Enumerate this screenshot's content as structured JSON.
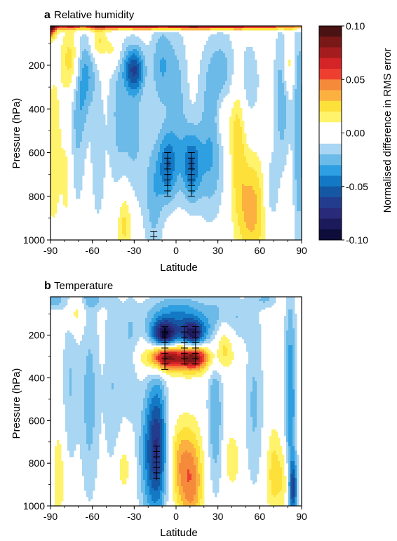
{
  "chart_data": [
    {
      "type": "heatmap",
      "panel_letter": "a",
      "title": "Relative humidity",
      "xlabel": "Latitude",
      "ylabel": "Pressure (hPa)",
      "xlim": [
        -90,
        90
      ],
      "ylim": [
        1000,
        20
      ],
      "y_reversed": true,
      "x_ticks": [
        -90,
        -60,
        -30,
        0,
        30,
        60,
        90
      ],
      "y_ticks": [
        200,
        400,
        600,
        800,
        1000
      ],
      "significance_hatching": true,
      "features": [
        {
          "lat": -91,
          "p": 20,
          "v": 0.1,
          "sx": 3,
          "sy": 35
        },
        {
          "lat": 0,
          "p": 20,
          "v": 0.08,
          "sx": 95,
          "sy": 12
        },
        {
          "lat": -88,
          "p": 600,
          "v": 0.02,
          "sx": 4,
          "sy": 250
        },
        {
          "lat": -75,
          "p": 180,
          "v": 0.03,
          "sx": 5,
          "sy": 110
        },
        {
          "lat": -68,
          "p": 270,
          "v": -0.025,
          "sx": 4,
          "sy": 170
        },
        {
          "lat": -62,
          "p": 230,
          "v": -0.02,
          "sx": 4,
          "sy": 120
        },
        {
          "lat": -72,
          "p": 560,
          "v": -0.018,
          "sx": 5,
          "sy": 260
        },
        {
          "lat": -56,
          "p": 620,
          "v": -0.016,
          "sx": 4,
          "sy": 260
        },
        {
          "lat": -42,
          "p": 420,
          "v": -0.02,
          "sx": 5,
          "sy": 300
        },
        {
          "lat": -30,
          "p": 220,
          "v": -0.05,
          "sx": 5,
          "sy": 70
        },
        {
          "lat": -30,
          "p": 500,
          "v": -0.022,
          "sx": 6,
          "sy": 260
        },
        {
          "lat": -10,
          "p": 200,
          "v": -0.03,
          "sx": 6,
          "sy": 150
        },
        {
          "lat": -16,
          "p": 800,
          "v": -0.025,
          "sx": 5,
          "sy": 200
        },
        {
          "lat": -6,
          "p": 660,
          "v": -0.045,
          "sx": 5,
          "sy": 120
        },
        {
          "lat": 11,
          "p": 660,
          "v": -0.045,
          "sx": 5,
          "sy": 120
        },
        {
          "lat": 2,
          "p": 380,
          "v": -0.02,
          "sx": 5,
          "sy": 260
        },
        {
          "lat": 25,
          "p": 620,
          "v": -0.03,
          "sx": 7,
          "sy": 200
        },
        {
          "lat": 32,
          "p": 240,
          "v": -0.025,
          "sx": 10,
          "sy": 150
        },
        {
          "lat": 52,
          "p": 280,
          "v": -0.015,
          "sx": 7,
          "sy": 160
        },
        {
          "lat": 76,
          "p": 330,
          "v": -0.03,
          "sx": 4,
          "sy": 230
        },
        {
          "lat": 88,
          "p": 500,
          "v": -0.03,
          "sx": 3,
          "sy": 420
        },
        {
          "lat": 54,
          "p": 860,
          "v": 0.035,
          "sx": 8,
          "sy": 180
        },
        {
          "lat": 44,
          "p": 480,
          "v": 0.03,
          "sx": 4,
          "sy": 220
        },
        {
          "lat": -37,
          "p": 920,
          "v": 0.028,
          "sx": 4,
          "sy": 120
        },
        {
          "lat": -56,
          "p": 90,
          "v": 0.025,
          "sx": 4,
          "sy": 60
        },
        {
          "lat": -45,
          "p": 130,
          "v": 0.02,
          "sx": 4,
          "sy": 60
        },
        {
          "lat": 80,
          "p": 200,
          "v": 0.025,
          "sx": 3,
          "sy": 90
        },
        {
          "lat": 34,
          "p": 440,
          "v": 0.02,
          "sx": 4,
          "sy": 90
        },
        {
          "lat": -78,
          "p": 700,
          "v": 0.018,
          "sx": 3,
          "sy": 200
        },
        {
          "lat": 68,
          "p": 780,
          "v": -0.02,
          "sx": 4,
          "sy": 140
        }
      ],
      "hatched_columns": [
        {
          "lat": -6,
          "p_from": 600,
          "p_to": 800
        },
        {
          "lat": 11,
          "p_from": 600,
          "p_to": 800
        },
        {
          "lat": -16,
          "p_from": 960,
          "p_to": 1000
        }
      ]
    },
    {
      "type": "heatmap",
      "panel_letter": "b",
      "title": "Temperature",
      "xlabel": "Latitude",
      "ylabel": "Pressure (hPa)",
      "xlim": [
        -90,
        90
      ],
      "ylim": [
        1000,
        20
      ],
      "y_reversed": true,
      "x_ticks": [
        -90,
        -60,
        -30,
        0,
        30,
        60,
        90
      ],
      "y_ticks": [
        200,
        400,
        600,
        800,
        1000
      ],
      "significance_hatching": true,
      "features": [
        {
          "lat": 2,
          "p": 120,
          "v": -0.04,
          "sx": 18,
          "sy": 80
        },
        {
          "lat": -8,
          "p": 200,
          "v": -0.075,
          "sx": 6,
          "sy": 45
        },
        {
          "lat": 12,
          "p": 200,
          "v": -0.07,
          "sx": 6,
          "sy": 45
        },
        {
          "lat": -8,
          "p": 300,
          "v": 0.065,
          "sx": 7,
          "sy": 40
        },
        {
          "lat": 12,
          "p": 300,
          "v": 0.065,
          "sx": 7,
          "sy": 40
        },
        {
          "lat": 2,
          "p": 310,
          "v": 0.035,
          "sx": 20,
          "sy": 50
        },
        {
          "lat": -13,
          "p": 720,
          "v": -0.055,
          "sx": 5,
          "sy": 230
        },
        {
          "lat": -20,
          "p": 760,
          "v": -0.03,
          "sx": 6,
          "sy": 240
        },
        {
          "lat": 11,
          "p": 880,
          "v": 0.045,
          "sx": 6,
          "sy": 170
        },
        {
          "lat": 2,
          "p": 800,
          "v": 0.025,
          "sx": 5,
          "sy": 140
        },
        {
          "lat": -62,
          "p": 500,
          "v": -0.025,
          "sx": 5,
          "sy": 350
        },
        {
          "lat": -45,
          "p": 420,
          "v": -0.02,
          "sx": 5,
          "sy": 350
        },
        {
          "lat": -33,
          "p": 320,
          "v": -0.02,
          "sx": 4,
          "sy": 200
        },
        {
          "lat": -76,
          "p": 420,
          "v": -0.02,
          "sx": 4,
          "sy": 300
        },
        {
          "lat": 28,
          "p": 580,
          "v": -0.03,
          "sx": 4,
          "sy": 260
        },
        {
          "lat": 40,
          "p": 120,
          "v": -0.02,
          "sx": 10,
          "sy": 80
        },
        {
          "lat": 56,
          "p": 520,
          "v": -0.022,
          "sx": 5,
          "sy": 300
        },
        {
          "lat": 82,
          "p": 520,
          "v": -0.04,
          "sx": 3,
          "sy": 380
        },
        {
          "lat": 84,
          "p": 920,
          "v": -0.05,
          "sx": 2,
          "sy": 90
        },
        {
          "lat": -88,
          "p": 30,
          "v": -0.03,
          "sx": 6,
          "sy": 35
        },
        {
          "lat": -60,
          "p": 30,
          "v": -0.02,
          "sx": 6,
          "sy": 30
        },
        {
          "lat": 65,
          "p": 30,
          "v": -0.02,
          "sx": 6,
          "sy": 30
        },
        {
          "lat": -72,
          "p": 100,
          "v": 0.02,
          "sx": 4,
          "sy": 60
        },
        {
          "lat": -38,
          "p": 820,
          "v": 0.02,
          "sx": 4,
          "sy": 90
        },
        {
          "lat": 34,
          "p": 220,
          "v": 0.028,
          "sx": 5,
          "sy": 80
        },
        {
          "lat": 40,
          "p": 780,
          "v": 0.02,
          "sx": 4,
          "sy": 90
        },
        {
          "lat": 70,
          "p": 850,
          "v": 0.025,
          "sx": 4,
          "sy": 160
        },
        {
          "lat": 78,
          "p": 880,
          "v": 0.02,
          "sx": 3,
          "sy": 120
        },
        {
          "lat": -84,
          "p": 860,
          "v": 0.02,
          "sx": 3,
          "sy": 160
        }
      ],
      "hatched_columns": [
        {
          "lat": -8,
          "p_from": 160,
          "p_to": 360
        },
        {
          "lat": 6,
          "p_from": 160,
          "p_to": 340
        },
        {
          "lat": 14,
          "p_from": 160,
          "p_to": 340
        },
        {
          "lat": -14,
          "p_from": 720,
          "p_to": 880
        }
      ]
    }
  ],
  "colorbar": {
    "label": "Normalised difference in RMS error",
    "min": -0.1,
    "max": 0.1,
    "tick_labels": [
      "0.10",
      "0.05",
      "0.00",
      "-0.05",
      "-0.10"
    ],
    "tick_values": [
      0.1,
      0.05,
      0,
      -0.05,
      -0.1
    ],
    "bins": [
      {
        "from": 0.09,
        "to": 0.1,
        "color": "#4a1212"
      },
      {
        "from": 0.08,
        "to": 0.09,
        "color": "#7a1818"
      },
      {
        "from": 0.07,
        "to": 0.08,
        "color": "#a51c1e"
      },
      {
        "from": 0.06,
        "to": 0.07,
        "color": "#d42427"
      },
      {
        "from": 0.05,
        "to": 0.06,
        "color": "#ee3e2f"
      },
      {
        "from": 0.04,
        "to": 0.05,
        "color": "#f58a3a"
      },
      {
        "from": 0.03,
        "to": 0.04,
        "color": "#fbb040"
      },
      {
        "from": 0.02,
        "to": 0.03,
        "color": "#fde03a"
      },
      {
        "from": 0.01,
        "to": 0.02,
        "color": "#fff36b"
      },
      {
        "from": -0.01,
        "to": 0.01,
        "color": "#ffffff"
      },
      {
        "from": -0.02,
        "to": -0.01,
        "color": "#a9d6f2"
      },
      {
        "from": -0.03,
        "to": -0.02,
        "color": "#6cbae8"
      },
      {
        "from": -0.04,
        "to": -0.03,
        "color": "#2e9fe0"
      },
      {
        "from": -0.05,
        "to": -0.04,
        "color": "#1479c4"
      },
      {
        "from": -0.06,
        "to": -0.05,
        "color": "#1557a3"
      },
      {
        "from": -0.07,
        "to": -0.06,
        "color": "#233d8e"
      },
      {
        "from": -0.08,
        "to": -0.07,
        "color": "#2a2a7a"
      },
      {
        "from": -0.09,
        "to": -0.08,
        "color": "#1d1a5c"
      },
      {
        "from": -0.1,
        "to": -0.09,
        "color": "#0d0c3a"
      }
    ],
    "contour_line_colors": {
      "positive": "#cc1a1a",
      "negative": "#1b2f8a"
    }
  }
}
